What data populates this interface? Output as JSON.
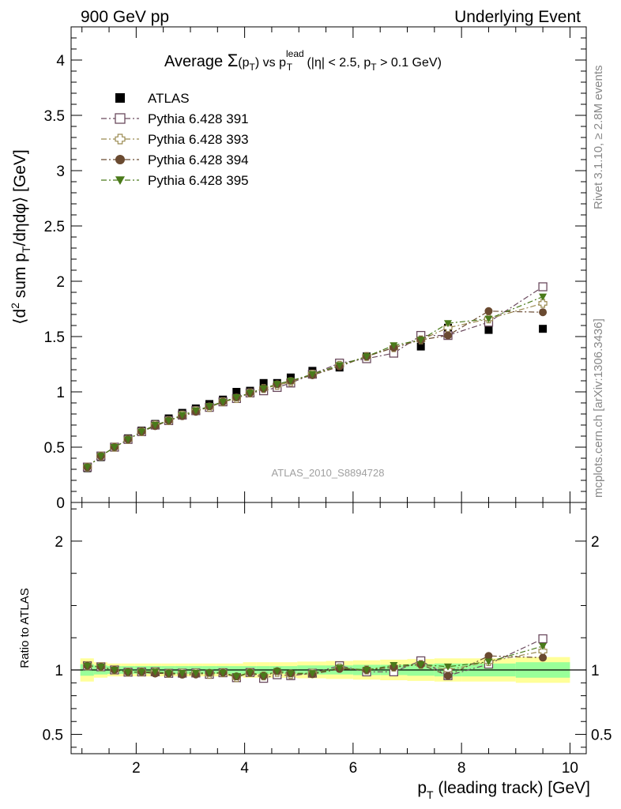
{
  "header": {
    "left": "900 GeV pp",
    "right": "Underlying Event"
  },
  "side_labels": {
    "rivet": "Rivet 3.1.10, ≥ 2.8M events",
    "mcplots": "mcplots.cern.ch [arXiv:1306.3436]"
  },
  "title": {
    "prefix": "Average ",
    "sigma": "Σ",
    "arg": "(p",
    "arg_sub": "T",
    "arg_close": ")",
    "vs": " vs p",
    "lead_sup": "lead",
    "lead_sub": "T",
    "cuts_a": " (|η| < 2.5, p",
    "cuts_sub": "T",
    "cuts_b": " > 0.1 GeV)"
  },
  "y_label": {
    "a": "⟨d",
    "sup": "2",
    "b": " sum p",
    "sub": "T",
    "c": "/dηdφ⟩ [GeV]"
  },
  "ratio_label": "Ratio to ATLAS",
  "x_label": {
    "a": "p",
    "sub": "T",
    "b": " (leading track) [GeV]"
  },
  "watermark": "ATLAS_2010_S8894728",
  "colors": {
    "atlas": "#000000",
    "p391": "#6b4a5e",
    "p393": "#9a8a50",
    "p394": "#6a4a30",
    "p395": "#4a7a1a",
    "band_inner": "#99ff99",
    "band_outer": "#ffff99"
  },
  "chart_data": {
    "type": "scatter",
    "x_axis": {
      "range": [
        0.8,
        10.3
      ],
      "ticks": [
        2,
        4,
        6,
        8,
        10
      ],
      "label": "p_T (leading track) [GeV]"
    },
    "main_panel": {
      "y_range": [
        0,
        4.3
      ],
      "y_ticks": [
        0,
        0.5,
        1,
        1.5,
        2,
        2.5,
        3,
        3.5,
        4
      ],
      "y_tick_labels": [
        "0",
        "0.5",
        "1",
        "1.5",
        "2",
        "2.5",
        "3",
        "3.5",
        "4"
      ],
      "ylabel": "⟨d² sum p_T/dηdφ⟩ [GeV]"
    },
    "ratio_panel": {
      "y_range": [
        0.35,
        2.3
      ],
      "y_ticks": [
        0.5,
        1,
        2
      ],
      "y_tick_labels": [
        "0.5",
        "1",
        "2"
      ],
      "ylabel": "Ratio to ATLAS"
    },
    "x": [
      1.1,
      1.35,
      1.6,
      1.85,
      2.1,
      2.35,
      2.6,
      2.85,
      3.1,
      3.35,
      3.6,
      3.85,
      4.1,
      4.35,
      4.6,
      4.85,
      5.25,
      5.75,
      6.25,
      6.75,
      7.25,
      7.75,
      8.5,
      9.5
    ],
    "legend": [
      "ATLAS",
      "Pythia 6.428 391",
      "Pythia 6.428 393",
      "Pythia 6.428 394",
      "Pythia 6.428 395"
    ],
    "series": [
      {
        "name": "ATLAS",
        "marker": "square-filled",
        "line": "none",
        "values": [
          0.31,
          0.41,
          0.5,
          0.58,
          0.65,
          0.71,
          0.76,
          0.81,
          0.85,
          0.89,
          0.93,
          1.0,
          1.01,
          1.08,
          1.08,
          1.13,
          1.19,
          1.22,
          1.32,
          1.37,
          1.41,
          1.58,
          1.56,
          1.57
        ]
      },
      {
        "name": "Pythia 6.428 391",
        "marker": "square-open",
        "line": "dash-dot",
        "values": [
          0.32,
          0.42,
          0.5,
          0.57,
          0.64,
          0.7,
          0.74,
          0.79,
          0.83,
          0.86,
          0.91,
          0.94,
          0.99,
          1.01,
          1.04,
          1.08,
          1.16,
          1.26,
          1.3,
          1.35,
          1.51,
          1.51,
          1.63,
          1.95
        ]
      },
      {
        "name": "Pythia 6.428 393",
        "marker": "cross-open",
        "line": "dash-dot",
        "values": [
          0.32,
          0.42,
          0.5,
          0.57,
          0.64,
          0.7,
          0.74,
          0.79,
          0.83,
          0.86,
          0.91,
          0.94,
          0.99,
          1.03,
          1.06,
          1.09,
          1.16,
          1.24,
          1.32,
          1.4,
          1.47,
          1.58,
          1.66,
          1.8
        ]
      },
      {
        "name": "Pythia 6.428 394",
        "marker": "circle-filled",
        "line": "dash-dot",
        "values": [
          0.32,
          0.42,
          0.5,
          0.57,
          0.64,
          0.69,
          0.74,
          0.78,
          0.82,
          0.87,
          0.91,
          0.95,
          0.99,
          1.03,
          1.07,
          1.1,
          1.15,
          1.23,
          1.32,
          1.4,
          1.47,
          1.51,
          1.73,
          1.72
        ]
      },
      {
        "name": "Pythia 6.428 395",
        "marker": "triangle-down-filled",
        "line": "dash-dot",
        "values": [
          0.32,
          0.42,
          0.5,
          0.57,
          0.64,
          0.7,
          0.74,
          0.79,
          0.83,
          0.87,
          0.91,
          0.95,
          0.99,
          1.03,
          1.07,
          1.1,
          1.16,
          1.24,
          1.32,
          1.42,
          1.47,
          1.62,
          1.66,
          1.86
        ]
      }
    ],
    "ratio_band": {
      "x_edges": [
        0.97,
        1.22,
        1.47,
        1.72,
        1.97,
        2.22,
        2.47,
        2.72,
        2.97,
        3.22,
        3.47,
        3.72,
        3.97,
        4.22,
        4.47,
        4.72,
        4.97,
        5.5,
        6.0,
        6.5,
        7.0,
        7.5,
        8.0,
        9.0,
        10.0
      ],
      "inner": [
        0.045,
        0.035,
        0.03,
        0.03,
        0.03,
        0.03,
        0.03,
        0.03,
        0.03,
        0.03,
        0.03,
        0.03,
        0.03,
        0.03,
        0.03,
        0.03,
        0.035,
        0.035,
        0.04,
        0.04,
        0.045,
        0.05,
        0.05,
        0.06
      ],
      "outer": [
        0.09,
        0.06,
        0.05,
        0.05,
        0.05,
        0.05,
        0.05,
        0.05,
        0.05,
        0.05,
        0.05,
        0.05,
        0.06,
        0.06,
        0.06,
        0.06,
        0.065,
        0.07,
        0.075,
        0.08,
        0.085,
        0.09,
        0.09,
        0.1
      ]
    },
    "grid": false,
    "legend_position": "top-left"
  }
}
